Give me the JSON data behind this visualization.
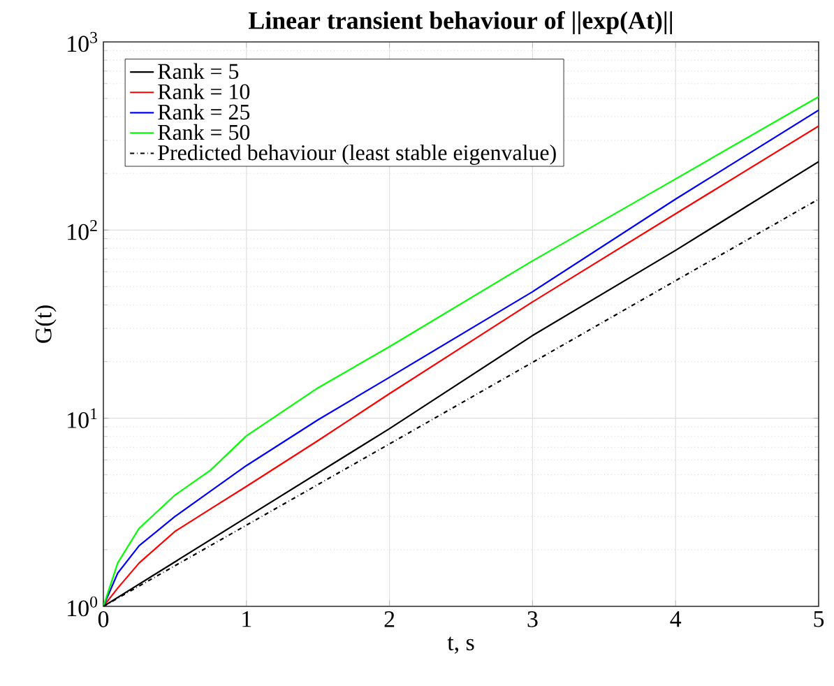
{
  "chart_data": {
    "type": "line",
    "title": "Linear transient behaviour of ||exp(At)||",
    "xlabel": "t, s",
    "ylabel": "G(t)",
    "log": "y",
    "xlim": [
      0,
      5
    ],
    "ylim": [
      1,
      1000
    ],
    "xticks": [
      0,
      1,
      2,
      3,
      4,
      5
    ],
    "yticks": [
      {
        "value": 1,
        "label": "10$^{0}$"
      },
      {
        "value": 10,
        "label": "10$^{1}$"
      },
      {
        "value": 100,
        "label": "10$^{2}$"
      },
      {
        "value": 1000,
        "label": "10$^{3}$"
      }
    ],
    "grid": true,
    "legend": "top left",
    "marker": "none",
    "series": [
      {
        "name": "Rank = 5",
        "color": "#000000",
        "line_style": "solid",
        "x": [
          0,
          1,
          2,
          3,
          4,
          5
        ],
        "values": [
          1,
          2.97,
          8.8,
          27.5,
          78,
          231
        ]
      },
      {
        "name": "Rank = 10",
        "color": "#ff0000",
        "line_style": "solid",
        "x": [
          0,
          0.1,
          0.25,
          0.5,
          0.75,
          1,
          1.5,
          2,
          3,
          4,
          5
        ],
        "values": [
          1,
          1.25,
          1.7,
          2.5,
          3.3,
          4.34,
          7.6,
          13.5,
          41.5,
          122,
          357
        ]
      },
      {
        "name": "Rank = 25",
        "color": "#0000ff",
        "line_style": "solid",
        "x": [
          0,
          0.1,
          0.25,
          0.5,
          0.75,
          1,
          1.5,
          2,
          3,
          4,
          5
        ],
        "values": [
          1,
          1.5,
          2.1,
          3.0,
          4.1,
          5.6,
          9.8,
          16.5,
          47,
          146,
          434
        ]
      },
      {
        "name": "Rank = 50",
        "color": "#00ff00",
        "line_style": "solid",
        "x": [
          0,
          0.1,
          0.25,
          0.5,
          0.75,
          1,
          1.5,
          2,
          3,
          4,
          5
        ],
        "values": [
          1,
          1.7,
          2.6,
          3.9,
          5.3,
          8.06,
          14.5,
          24,
          68.6,
          187,
          511
        ]
      },
      {
        "name": "Predicted behaviour (least stable eigenvalue)",
        "color": "#000000",
        "line_style": "dashdotted",
        "x": [
          0,
          1,
          2,
          3,
          4,
          5
        ],
        "values": [
          1,
          2.7,
          7.3,
          19.8,
          53.8,
          146
        ]
      }
    ]
  }
}
